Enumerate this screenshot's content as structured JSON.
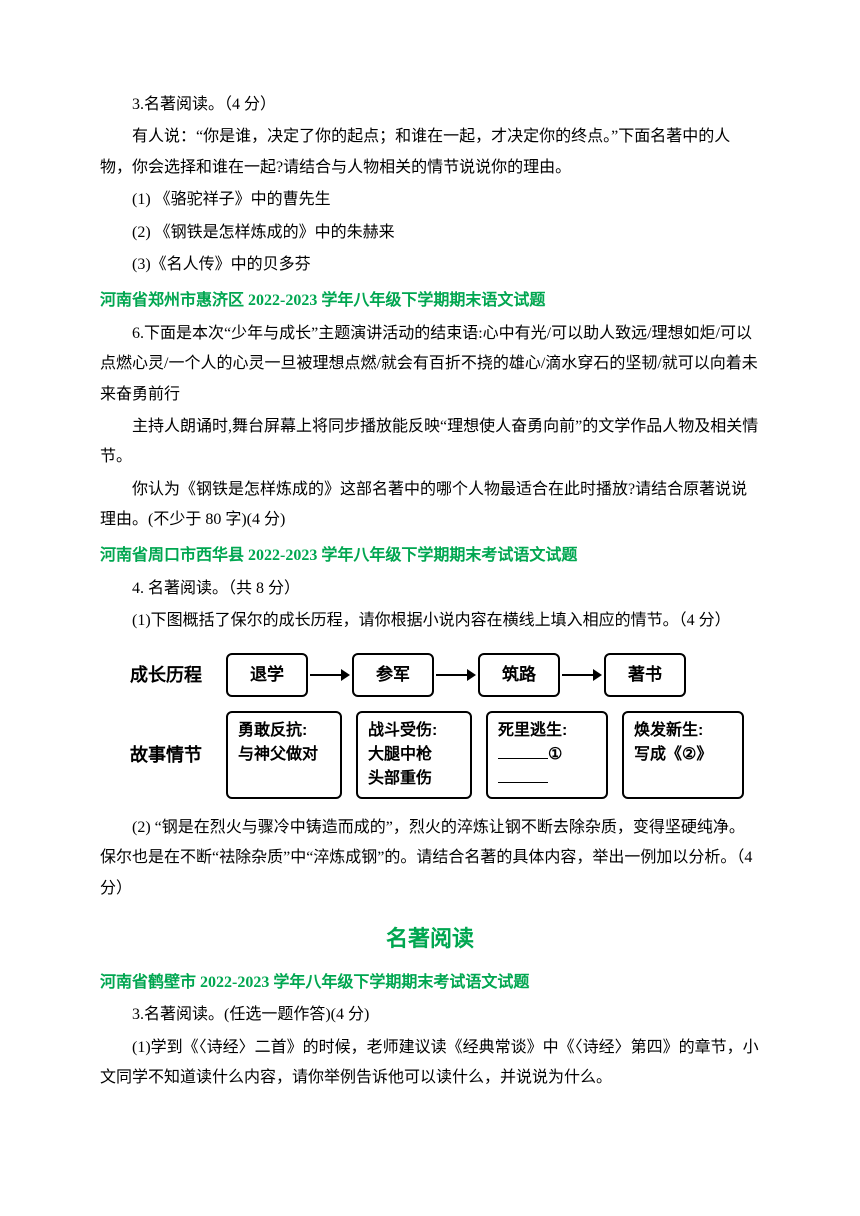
{
  "section1": {
    "q3_title": "3.名著阅读。（4 分）",
    "p1": "有人说：“你是谁，决定了你的起点；和谁在一起，才决定你的终点。”下面名著中的人物，你会选择和谁在一起?请结合与人物相关的情节说说你的理由。",
    "opt1": "(1) 《骆驼祥子》中的曹先生",
    "opt2": "(2) 《钢铁是怎样炼成的》中的朱赫来",
    "opt3": "(3)《名人传》中的贝多芬"
  },
  "section2": {
    "header": "河南省郑州市惠济区 2022-2023 学年八年级下学期期末语文试题",
    "p1": "6.下面是本次“少年与成长”主题演讲活动的结束语:心中有光/可以助人致远/理想如炬/可以点燃心灵/一个人的心灵一旦被理想点燃/就会有百折不挠的雄心/滴水穿石的坚韧/就可以向着未来奋勇前行",
    "p2": "主持人朗诵时,舞台屏幕上将同步播放能反映“理想使人奋勇向前”的文学作品人物及相关情节。",
    "p3": "你认为《钢铁是怎样炼成的》这部名著中的哪个人物最适合在此时播放?请结合原著说说理由。(不少于 80 字)(4 分)"
  },
  "section3": {
    "header": "河南省周口市西华县 2022-2023 学年八年级下学期期末考试语文试题",
    "q4_title": "4. 名著阅读。（共 8 分）",
    "sub1": "(1)下图概括了保尔的成长历程，请你根据小说内容在横线上填入相应的情节。（4 分）",
    "diagram": {
      "row1_label": "成长历程",
      "top_boxes": [
        "退学",
        "参军",
        "筑路",
        "著书"
      ],
      "row2_label": "故事情节",
      "bottom_boxes": [
        {
          "line1": "勇敢反抗:",
          "line2": "与神父做对"
        },
        {
          "line1": "战斗受伤:",
          "line2": "大腿中枪",
          "line3": "头部重伤"
        },
        {
          "line1": "死里逃生:",
          "fill": "①"
        },
        {
          "line1": "焕发新生:",
          "line2a": "写成《",
          "fill": "②",
          "line2b": "》"
        }
      ]
    },
    "sub2": "(2) “钢是在烈火与骤冷中铸造而成的”，烈火的淬炼让钢不断去除杂质，变得坚硬纯净。保尔也是在不断“祛除杂质”中“淬炼成钢”的。请结合名著的具体内容，举出一例加以分析。（4 分）"
  },
  "center_heading": "名著阅读",
  "section4": {
    "header": "河南省鹤壁市 2022-2023 学年八年级下学期期末考试语文试题",
    "q3_title": "3.名著阅读。(任选一题作答)(4 分)",
    "p1": "(1)学到《〈诗经〉二首》的时候，老师建议读《经典常谈》中《〈诗经〉第四》的章节，小文同学不知道读什么内容，请你举例告诉他可以读什么，并说说为什么。"
  }
}
